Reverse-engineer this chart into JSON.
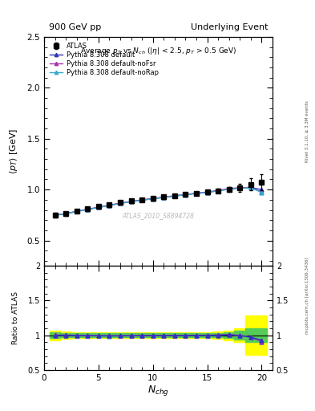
{
  "title_left": "900 GeV pp",
  "title_right": "Underlying Event",
  "plot_title": "Average $p_T$ vs $N_{ch}$ ($|\\eta|$ < 2.5, $p_T$ > 0.5 GeV)",
  "ylabel_main": "$\\langle p_T \\rangle$ [GeV]",
  "ylabel_ratio": "Ratio to ATLAS",
  "xlabel": "$N_{chg}$",
  "rivet_label": "Rivet 3.1.10, ≥ 3.3M events",
  "mcplots_label": "mcplots.cern.ch [arXiv:1306.3436]",
  "watermark": "ATLAS_2010_S8894728",
  "ylim_main": [
    0.25,
    2.5
  ],
  "ylim_ratio": [
    0.5,
    2.0
  ],
  "xlim": [
    0,
    21
  ],
  "atlas_x": [
    1,
    2,
    3,
    4,
    5,
    6,
    7,
    8,
    9,
    10,
    11,
    12,
    13,
    14,
    15,
    16,
    17,
    18,
    19,
    20
  ],
  "atlas_y": [
    0.748,
    0.762,
    0.788,
    0.81,
    0.832,
    0.853,
    0.873,
    0.887,
    0.901,
    0.913,
    0.928,
    0.94,
    0.953,
    0.963,
    0.975,
    0.988,
    1.0,
    1.02,
    1.05,
    1.075
  ],
  "atlas_yerr": [
    0.025,
    0.018,
    0.015,
    0.013,
    0.012,
    0.012,
    0.012,
    0.012,
    0.012,
    0.012,
    0.012,
    0.012,
    0.012,
    0.015,
    0.015,
    0.02,
    0.025,
    0.04,
    0.06,
    0.08
  ],
  "pythia_default_x": [
    1,
    2,
    3,
    4,
    5,
    6,
    7,
    8,
    9,
    10,
    11,
    12,
    13,
    14,
    15,
    16,
    17,
    18,
    19,
    20
  ],
  "pythia_default_y": [
    0.748,
    0.762,
    0.785,
    0.805,
    0.825,
    0.845,
    0.865,
    0.882,
    0.897,
    0.91,
    0.924,
    0.937,
    0.95,
    0.962,
    0.973,
    0.988,
    1.005,
    1.015,
    1.02,
    1.0
  ],
  "pythia_noFSR_x": [
    1,
    2,
    3,
    4,
    5,
    6,
    7,
    8,
    9,
    10,
    11,
    12,
    13,
    14,
    15,
    16,
    17,
    18,
    19,
    20
  ],
  "pythia_noFSR_y": [
    0.75,
    0.763,
    0.787,
    0.807,
    0.827,
    0.847,
    0.866,
    0.883,
    0.899,
    0.912,
    0.926,
    0.939,
    0.952,
    0.964,
    0.976,
    0.992,
    1.01,
    1.018,
    1.022,
    0.975
  ],
  "pythia_noRap_x": [
    1,
    2,
    3,
    4,
    5,
    6,
    7,
    8,
    9,
    10,
    11,
    12,
    13,
    14,
    15,
    16,
    17,
    18,
    19,
    20
  ],
  "pythia_noRap_y": [
    0.748,
    0.762,
    0.785,
    0.805,
    0.824,
    0.844,
    0.864,
    0.881,
    0.896,
    0.909,
    0.923,
    0.936,
    0.949,
    0.961,
    0.972,
    0.987,
    1.004,
    1.014,
    1.018,
    0.972
  ],
  "color_default": "#3333bb",
  "color_noFSR": "#aa33aa",
  "color_noRap": "#33aacc",
  "atlas_color": "#000000",
  "green_band_x": [
    0.5,
    1.5,
    2.5,
    3.5,
    4.5,
    5.5,
    6.5,
    7.5,
    8.5,
    9.5,
    10.5,
    11.5,
    12.5,
    13.5,
    14.5,
    15.5,
    16.5,
    17.5,
    18.5,
    19.5,
    20.5
  ],
  "green_band_lo": [
    0.96,
    0.96,
    0.97,
    0.97,
    0.975,
    0.975,
    0.975,
    0.975,
    0.975,
    0.975,
    0.975,
    0.975,
    0.975,
    0.975,
    0.975,
    0.97,
    0.97,
    0.96,
    0.94,
    0.9,
    0.9
  ],
  "green_band_hi": [
    1.04,
    1.04,
    1.03,
    1.03,
    1.025,
    1.025,
    1.025,
    1.025,
    1.025,
    1.025,
    1.025,
    1.025,
    1.025,
    1.025,
    1.025,
    1.03,
    1.03,
    1.04,
    1.06,
    1.1,
    1.1
  ],
  "yellow_band_x": [
    0.5,
    1.5,
    2.5,
    3.5,
    4.5,
    5.5,
    6.5,
    7.5,
    8.5,
    9.5,
    10.5,
    11.5,
    12.5,
    13.5,
    14.5,
    15.5,
    16.5,
    17.5,
    18.5,
    19.5,
    20.5
  ],
  "yellow_band_lo": [
    0.93,
    0.93,
    0.95,
    0.955,
    0.96,
    0.96,
    0.96,
    0.96,
    0.96,
    0.96,
    0.96,
    0.96,
    0.96,
    0.96,
    0.96,
    0.955,
    0.95,
    0.93,
    0.9,
    0.72,
    0.72
  ],
  "yellow_band_hi": [
    1.07,
    1.07,
    1.05,
    1.045,
    1.04,
    1.04,
    1.04,
    1.04,
    1.04,
    1.04,
    1.04,
    1.04,
    1.04,
    1.04,
    1.04,
    1.045,
    1.05,
    1.07,
    1.1,
    1.28,
    1.28
  ]
}
